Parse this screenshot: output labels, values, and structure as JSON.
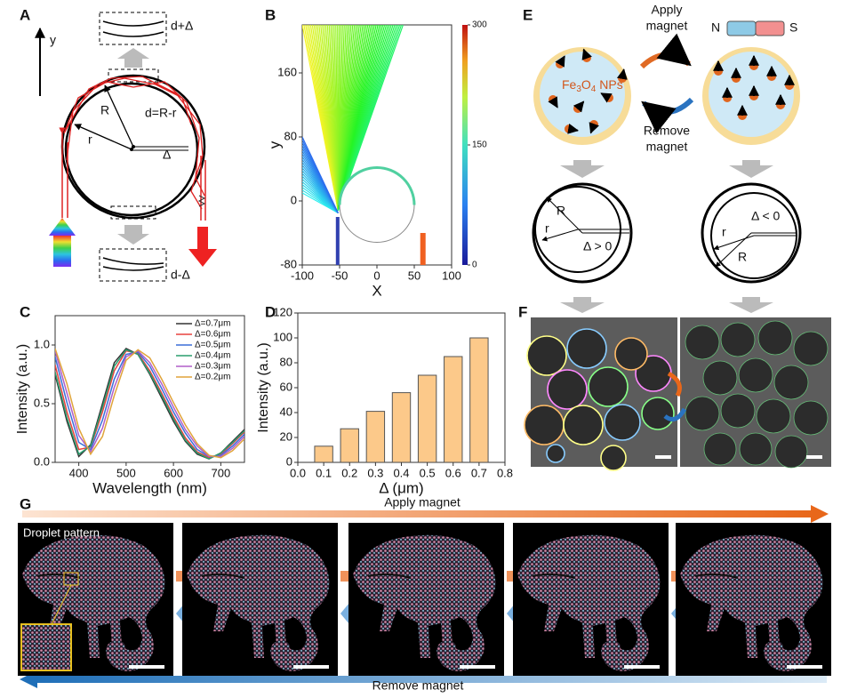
{
  "panel_labels": [
    "A",
    "B",
    "C",
    "D",
    "E",
    "F",
    "G"
  ],
  "panel_a": {
    "y_axis": "y",
    "top_label": "d+Δ",
    "gap_label": "d=R-r",
    "outer_radius": "R",
    "inner_radius": "r",
    "offset": "Δ",
    "bottom_label": "d-Δ"
  },
  "panel_e": {
    "apply": [
      "Apply",
      "magnet"
    ],
    "remove": [
      "Remove",
      "magnet"
    ],
    "north": "N",
    "south": "S",
    "particles": [
      "Fe",
      "3",
      "O",
      "4",
      " NPs"
    ],
    "left": {
      "outer": "R",
      "inner": "r",
      "offset": "Δ > 0"
    },
    "right": {
      "outer": "R",
      "inner": "r",
      "offset": "Δ < 0"
    }
  },
  "panel_g": {
    "apply": "Apply magnet",
    "remove": "Remove magnet",
    "pattern": "Droplet pattern"
  },
  "chart_data": [
    {
      "type": "raytrace",
      "xlabel": "X",
      "ylabel": "y",
      "xlim": [
        -100,
        100
      ],
      "xticks": [
        -100,
        -50,
        0,
        50,
        100
      ],
      "ylim": [
        -80,
        220
      ],
      "yticks": [
        -80,
        0,
        80,
        160
      ],
      "colorbar": {
        "lim": [
          0,
          300
        ],
        "ticks": [
          0,
          150,
          300
        ]
      }
    },
    {
      "type": "line",
      "xlabel": "Wavelength (nm)",
      "ylabel": "Intensity (a.u.)",
      "xlim": [
        350,
        750
      ],
      "xticks": [
        400,
        500,
        600,
        700
      ],
      "ylim": [
        0,
        1.25
      ],
      "yticks": [
        {
          "value": 0,
          "label": "0.0"
        },
        0.5,
        {
          "value": 1,
          "label": "1.0"
        }
      ],
      "x": [
        350,
        375,
        400,
        425,
        450,
        475,
        500,
        525,
        550,
        575,
        600,
        625,
        650,
        675,
        700,
        725,
        750
      ],
      "series": [
        {
          "name": "Δ=0.7μm",
          "color": "#333333",
          "values": [
            0.75,
            0.35,
            0.05,
            0.15,
            0.5,
            0.85,
            0.97,
            0.92,
            0.75,
            0.55,
            0.35,
            0.18,
            0.07,
            0.03,
            0.08,
            0.18,
            0.28
          ]
        },
        {
          "name": "Δ=0.6μm",
          "color": "#e8423f",
          "values": [
            0.83,
            0.43,
            0.11,
            0.13,
            0.43,
            0.78,
            0.95,
            0.93,
            0.78,
            0.59,
            0.39,
            0.21,
            0.09,
            0.04,
            0.07,
            0.16,
            0.26
          ]
        },
        {
          "name": "Δ=0.5μm",
          "color": "#3b6fd8",
          "values": [
            0.9,
            0.51,
            0.17,
            0.11,
            0.36,
            0.71,
            0.92,
            0.94,
            0.82,
            0.63,
            0.43,
            0.25,
            0.11,
            0.05,
            0.06,
            0.14,
            0.24
          ]
        },
        {
          "name": "Δ=0.4μm",
          "color": "#2a9d6f",
          "values": [
            0.77,
            0.38,
            0.07,
            0.14,
            0.47,
            0.82,
            0.96,
            0.92,
            0.76,
            0.57,
            0.37,
            0.19,
            0.08,
            0.03,
            0.08,
            0.17,
            0.27
          ]
        },
        {
          "name": "Δ=0.3μm",
          "color": "#b05fc9",
          "values": [
            0.95,
            0.59,
            0.23,
            0.09,
            0.29,
            0.64,
            0.9,
            0.95,
            0.85,
            0.67,
            0.47,
            0.28,
            0.14,
            0.05,
            0.05,
            0.12,
            0.22
          ]
        },
        {
          "name": "Δ=0.2μm",
          "color": "#e0a43a",
          "values": [
            0.97,
            0.67,
            0.29,
            0.07,
            0.22,
            0.57,
            0.87,
            0.96,
            0.89,
            0.71,
            0.51,
            0.32,
            0.16,
            0.06,
            0.04,
            0.1,
            0.2
          ]
        }
      ]
    },
    {
      "type": "bar",
      "xlabel": "Δ (μm)",
      "ylabel": "Intensity (a.u.)",
      "xlim": [
        0,
        0.8
      ],
      "xticks": [
        {
          "value": 0,
          "label": "0.0"
        },
        0.1,
        0.2,
        0.3,
        0.4,
        0.5,
        0.6,
        0.7,
        0.8
      ],
      "ylim": [
        0,
        120
      ],
      "yticks": [
        0,
        20,
        40,
        60,
        80,
        100,
        120
      ],
      "x": [
        0.1,
        0.2,
        0.3,
        0.4,
        0.5,
        0.6,
        0.7
      ],
      "values": [
        13,
        27,
        41,
        56,
        70,
        85,
        100
      ],
      "color": "#fcc98a"
    }
  ]
}
